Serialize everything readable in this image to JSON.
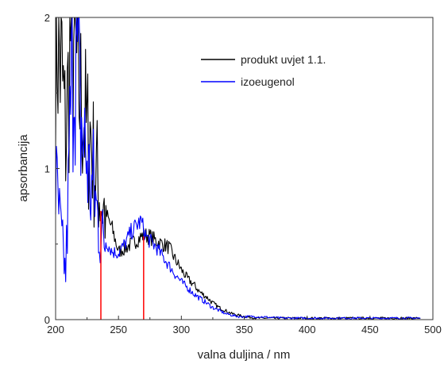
{
  "chart_data": {
    "type": "line",
    "xlabel": "valna duljina / nm",
    "ylabel": "apsorbancija",
    "xlim": [
      200,
      500
    ],
    "ylim": [
      0,
      2
    ],
    "x_ticks": [
      200,
      250,
      300,
      350,
      400,
      450,
      500
    ],
    "y_ticks": [
      0,
      1,
      2
    ],
    "grid": false,
    "legend_position": "top-right",
    "series": [
      {
        "name": "produkt uvjet 1.1.",
        "color": "#000000",
        "x": [
          200,
          205,
          208,
          210,
          212,
          215,
          218,
          220,
          222,
          225,
          228,
          230,
          233,
          236,
          240,
          245,
          250,
          255,
          260,
          265,
          270,
          275,
          280,
          285,
          290,
          295,
          300,
          305,
          310,
          315,
          320,
          325,
          330,
          335,
          340,
          345,
          350,
          360,
          380,
          400,
          420,
          440,
          460,
          480,
          490
        ],
        "y": [
          2.0,
          1.6,
          1.2,
          1.5,
          1.9,
          1.8,
          1.55,
          1.45,
          1.4,
          1.2,
          1.25,
          1.05,
          0.95,
          0.78,
          0.7,
          0.6,
          0.45,
          0.47,
          0.5,
          0.53,
          0.56,
          0.55,
          0.52,
          0.5,
          0.48,
          0.4,
          0.33,
          0.27,
          0.23,
          0.18,
          0.15,
          0.11,
          0.08,
          0.06,
          0.04,
          0.03,
          0.02,
          0.01,
          0.01,
          0.01,
          0.01,
          0.01,
          0.01,
          0.01,
          0.01
        ]
      },
      {
        "name": "izoeugenol",
        "color": "#0000ff",
        "x": [
          200,
          205,
          208,
          210,
          212,
          215,
          218,
          220,
          222,
          225,
          228,
          230,
          233,
          236,
          240,
          245,
          250,
          255,
          260,
          265,
          268,
          270,
          272,
          275,
          280,
          285,
          290,
          295,
          300,
          305,
          310,
          315,
          320,
          325,
          330,
          335,
          340,
          345,
          350,
          360,
          380,
          400,
          420,
          440,
          460,
          480,
          490
        ],
        "y": [
          0.9,
          0.5,
          0.3,
          0.8,
          1.4,
          1.85,
          1.6,
          1.3,
          1.2,
          1.05,
          0.85,
          0.9,
          0.7,
          0.55,
          0.52,
          0.45,
          0.44,
          0.5,
          0.58,
          0.63,
          0.65,
          0.6,
          0.55,
          0.52,
          0.48,
          0.42,
          0.36,
          0.3,
          0.25,
          0.21,
          0.17,
          0.14,
          0.11,
          0.08,
          0.06,
          0.04,
          0.03,
          0.02,
          0.02,
          0.02,
          0.01,
          0.01,
          0.01,
          0.01,
          0.01,
          0.01,
          0.01
        ]
      }
    ],
    "markers": [
      {
        "x": 236,
        "y_top": 0.72,
        "color": "#ff0000"
      },
      {
        "x": 270,
        "y_top": 0.55,
        "color": "#ff0000"
      }
    ]
  }
}
